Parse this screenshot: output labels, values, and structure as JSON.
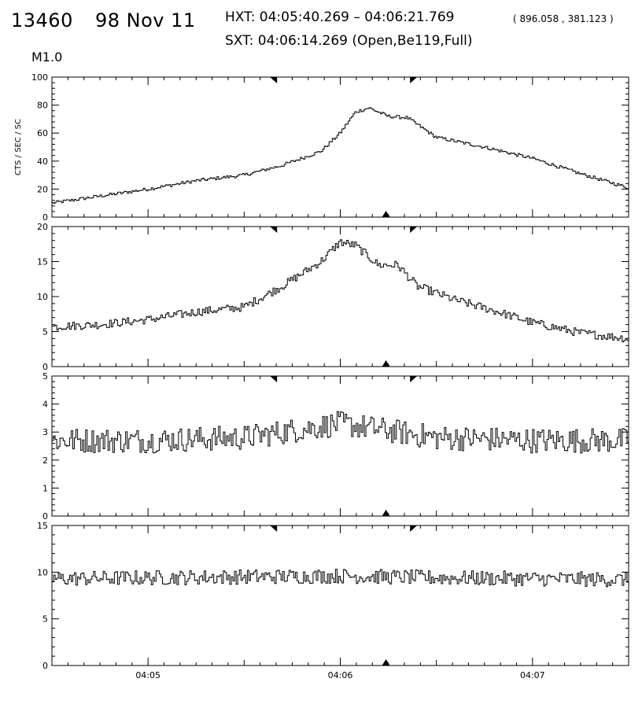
{
  "header": {
    "flare_number": "13460",
    "date": "98 Nov 11",
    "hxt_range": "HXT: 04:05:40.269 – 04:06:21.769",
    "hxt_coords": "( 896.058 , 381.123 )",
    "sxt_line": "SXT: 04:06:14.269 (Open,Be119,Full)",
    "flare_class": "M1.0"
  },
  "chart_data": {
    "type": "line",
    "xlabel": "",
    "x_range": [
      "04:04:30",
      "04:07:30"
    ],
    "x_tick_labels": [
      "04:05",
      "04:06",
      "04:07"
    ],
    "top_markers": [
      "04:05:40.269",
      "04:06:21.769"
    ],
    "bottom_marker": "04:06:14.269",
    "panels": [
      {
        "ylabel": "CTS / SEC / SC",
        "ylim": [
          0,
          100
        ],
        "y_ticks": [
          0,
          20,
          40,
          60,
          80,
          100
        ],
        "profile_minutes": [
          0.0,
          0.25,
          0.5,
          0.75,
          1.0,
          1.2,
          1.4,
          1.5,
          1.58,
          1.65,
          1.75,
          1.85,
          2.0,
          2.25,
          2.5,
          2.75,
          3.0
        ],
        "profile_values": [
          10,
          15,
          20,
          26,
          30,
          37,
          47,
          60,
          75,
          78,
          72,
          71,
          57,
          50,
          42,
          31,
          21
        ],
        "noise": 1.2
      },
      {
        "ylabel": "",
        "ylim": [
          0,
          20
        ],
        "y_ticks": [
          0,
          5,
          10,
          15,
          20
        ],
        "profile_minutes": [
          0.0,
          0.25,
          0.5,
          0.75,
          1.0,
          1.2,
          1.4,
          1.5,
          1.58,
          1.7,
          1.8,
          1.9,
          2.1,
          2.3,
          2.5,
          2.75,
          3.0
        ],
        "profile_values": [
          5.7,
          6.0,
          6.7,
          7.8,
          8.5,
          11.5,
          15,
          17.8,
          17.3,
          14.5,
          14.5,
          11.5,
          9.5,
          8.0,
          6.3,
          4.8,
          4.0
        ],
        "noise": 0.6
      },
      {
        "ylabel": "",
        "ylim": [
          0,
          5
        ],
        "y_ticks": [
          0,
          1,
          2,
          3,
          4,
          5
        ],
        "profile_minutes": [
          0.0,
          0.5,
          1.0,
          1.3,
          1.5,
          1.8,
          2.0,
          2.5,
          3.0
        ],
        "profile_values": [
          2.7,
          2.7,
          2.8,
          3.1,
          3.3,
          3.0,
          2.8,
          2.7,
          2.7
        ],
        "noise": 0.45
      },
      {
        "ylabel": "",
        "ylim": [
          0,
          15
        ],
        "y_ticks": [
          0,
          5,
          10,
          15
        ],
        "profile_minutes": [
          0.0,
          1.0,
          1.5,
          2.0,
          3.0
        ],
        "profile_values": [
          9.3,
          9.5,
          9.6,
          9.4,
          9.2
        ],
        "noise": 0.8
      }
    ]
  }
}
